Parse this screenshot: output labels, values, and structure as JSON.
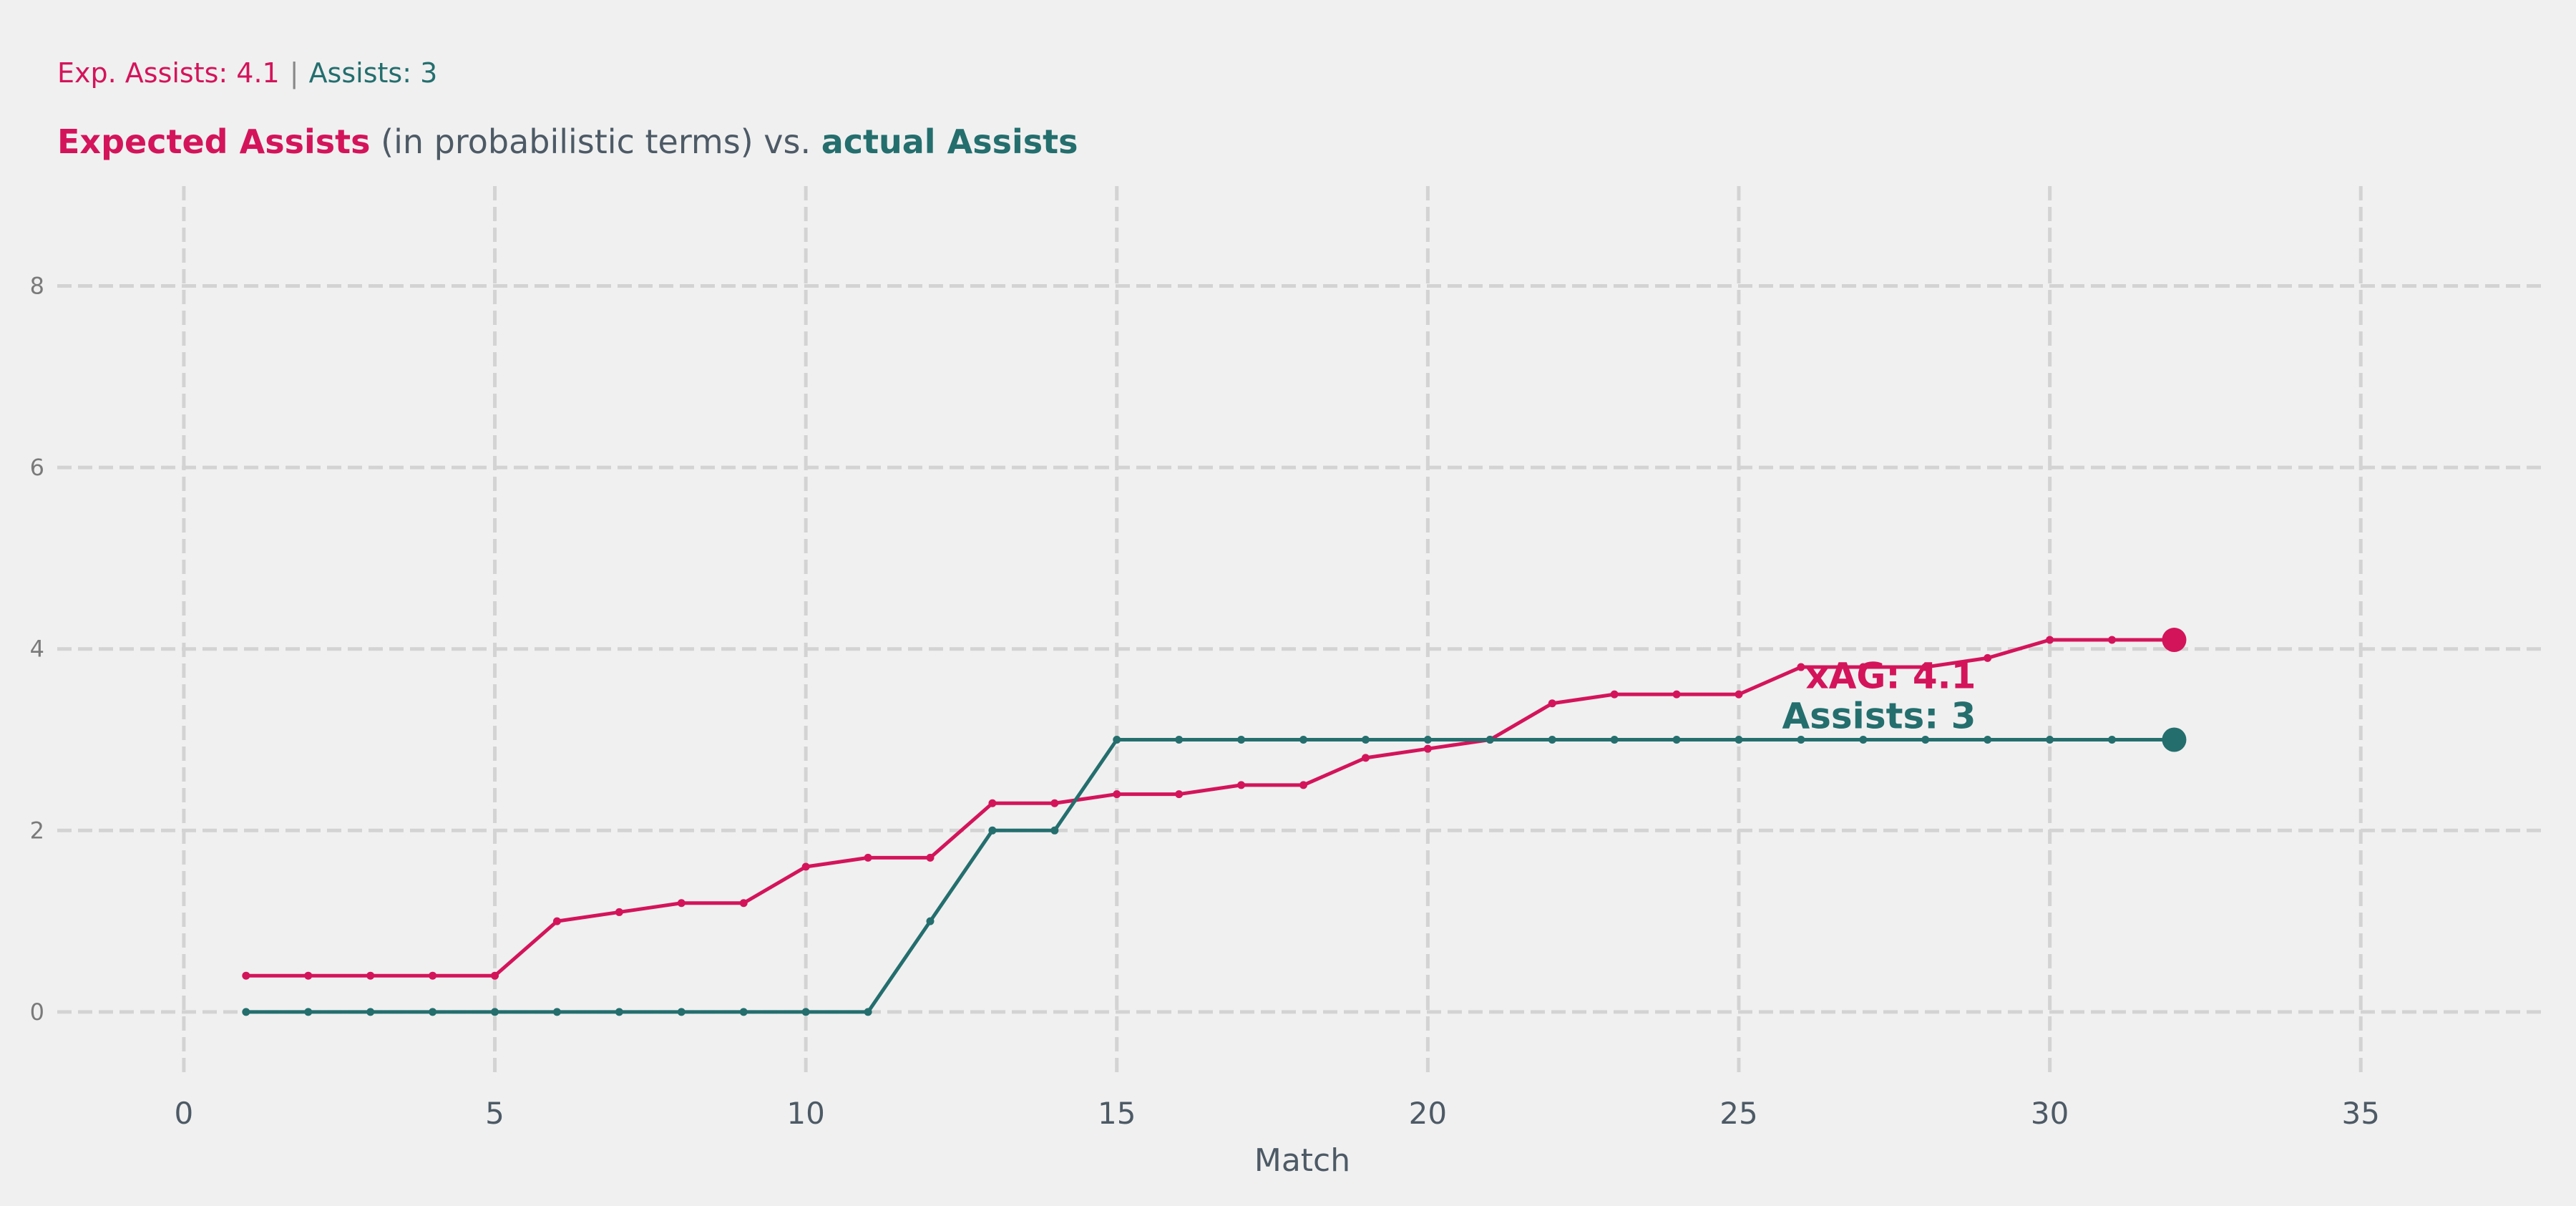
{
  "colors": {
    "xag": "#d4145a",
    "assists": "#246e6e",
    "grid": "#d3d3d3",
    "text": "#4d5a66",
    "background": "#f0f0f0"
  },
  "legend": {
    "xag_text": "Exp. Assists: 4.1",
    "separator": "|",
    "assists_text": "Assists: 3"
  },
  "title": {
    "part1": "Expected Assists",
    "part2": " (in probabilistic terms) vs. ",
    "part3": "actual Assists"
  },
  "chart_data": {
    "type": "line",
    "title": "Expected Assists (in probabilistic terms) vs. actual Assists",
    "xlabel": "Match",
    "ylabel": "",
    "xlim": [
      -1,
      38
    ],
    "ylim": [
      -0.6,
      9.1
    ],
    "xticks": [
      0,
      5,
      10,
      15,
      20,
      25,
      30,
      35
    ],
    "yticks": [
      0,
      2,
      4,
      6,
      8
    ],
    "grid": true,
    "grid_style": "dashed",
    "x": [
      1,
      2,
      3,
      4,
      5,
      6,
      7,
      8,
      9,
      10,
      11,
      12,
      13,
      14,
      15,
      16,
      17,
      18,
      19,
      20,
      21,
      22,
      23,
      24,
      25,
      26,
      27,
      28,
      29,
      30,
      31,
      32
    ],
    "series": [
      {
        "key": "xag",
        "values": [
          0.4,
          0.4,
          0.4,
          0.4,
          0.4,
          1.0,
          1.1,
          1.2,
          1.2,
          1.6,
          1.7,
          1.7,
          2.3,
          2.3,
          2.4,
          2.4,
          2.5,
          2.5,
          2.8,
          2.9,
          3.0,
          3.4,
          3.5,
          3.5,
          3.5,
          3.8,
          3.8,
          3.8,
          3.9,
          4.1,
          4.1,
          4.1
        ],
        "end_label": "xAG: 4.1"
      },
      {
        "key": "assists",
        "values": [
          0,
          0,
          0,
          0,
          0,
          0,
          0,
          0,
          0,
          0,
          0,
          1,
          2,
          2,
          3,
          3,
          3,
          3,
          3,
          3,
          3,
          3,
          3,
          3,
          3,
          3,
          3,
          3,
          3,
          3,
          3,
          3
        ],
        "end_label": "Assists: 3"
      }
    ]
  }
}
